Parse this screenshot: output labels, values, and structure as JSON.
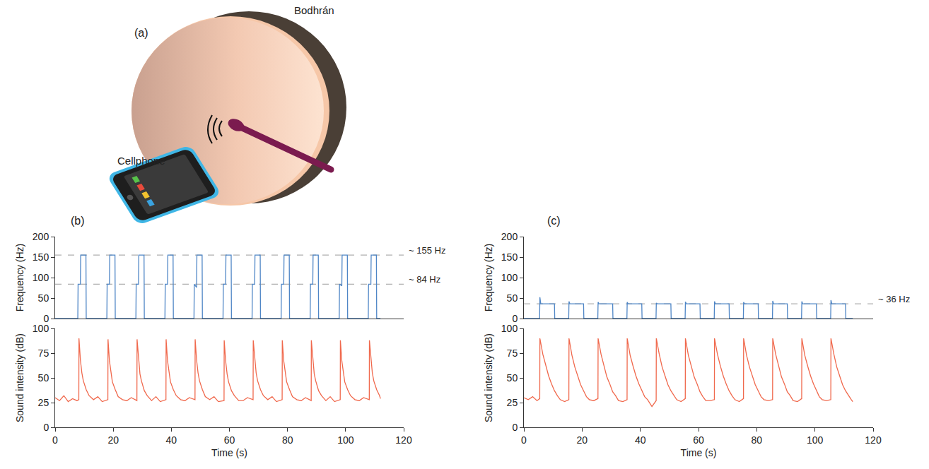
{
  "figure": {
    "panel": "(a)",
    "labels": {
      "drum": "Bodhrán",
      "phone": "Cellphone"
    }
  },
  "chart_data": [
    {
      "type": "line",
      "panel": "(b)",
      "y_label": "Frequency (Hz)",
      "color": "#4f86c6",
      "line_style": "solid",
      "xlim": [
        0,
        120
      ],
      "ylim": [
        0,
        200
      ],
      "yticks": [
        0,
        50,
        100,
        150,
        200
      ],
      "tick_labels": "y",
      "reference_lines": [
        {
          "value": 155,
          "label": "~ 155 Hz"
        },
        {
          "value": 84,
          "label": "~ 84 Hz"
        }
      ],
      "x": [
        0,
        7.8,
        7.9,
        8.7,
        8.8,
        10.6,
        10.7,
        17.8,
        17.9,
        18.7,
        18.8,
        20.6,
        20.7,
        27.8,
        27.9,
        28.7,
        28.8,
        30.6,
        30.7,
        37.8,
        37.9,
        38.7,
        38.8,
        40.6,
        40.7,
        47.8,
        47.9,
        48.7,
        48.8,
        50.6,
        50.7,
        57.8,
        57.9,
        58.7,
        58.8,
        60.6,
        60.7,
        67.8,
        67.9,
        68.7,
        68.8,
        70.6,
        70.7,
        77.8,
        77.9,
        78.7,
        78.8,
        80.6,
        80.7,
        87.8,
        87.9,
        88.7,
        88.8,
        90.6,
        90.7,
        97.8,
        97.9,
        98.7,
        98.8,
        100.6,
        100.7,
        107.8,
        107.9,
        108.7,
        108.8,
        110.6,
        110.7,
        112
      ],
      "values": [
        0,
        0,
        84,
        84,
        155,
        155,
        0,
        0,
        84,
        84,
        155,
        155,
        0,
        0,
        84,
        84,
        155,
        155,
        0,
        0,
        84,
        84,
        155,
        155,
        0,
        0,
        84,
        76,
        155,
        155,
        0,
        0,
        84,
        84,
        155,
        155,
        0,
        0,
        84,
        84,
        155,
        155,
        0,
        0,
        84,
        84,
        155,
        155,
        0,
        0,
        84,
        84,
        155,
        155,
        0,
        0,
        84,
        80,
        155,
        155,
        0,
        0,
        84,
        84,
        155,
        155,
        0,
        0
      ]
    },
    {
      "type": "line",
      "y_label": "Sound intensity (dB)",
      "x_label": "Time (s)",
      "color": "#f0694d",
      "line_style": "solid",
      "xlim": [
        0,
        120
      ],
      "xticks": [
        0,
        20,
        40,
        60,
        80,
        100,
        120
      ],
      "ylim": [
        0,
        100
      ],
      "yticks": [
        0,
        25,
        50,
        75,
        100
      ],
      "x": [
        0,
        1.5,
        3,
        4.5,
        6,
        7.5,
        8.15,
        8.2,
        8.7,
        9.2,
        9.7,
        10.7,
        11.7,
        13.2,
        14.7,
        16.2,
        18.15,
        18.2,
        18.7,
        19.2,
        19.7,
        20.7,
        21.7,
        23.2,
        24.7,
        26.2,
        28.15,
        28.2,
        28.7,
        29.2,
        29.7,
        30.7,
        31.7,
        33.2,
        34.7,
        36.2,
        38.15,
        38.2,
        38.7,
        39.2,
        39.7,
        40.7,
        41.7,
        43.2,
        44.7,
        46.2,
        48.15,
        48.2,
        48.7,
        49.2,
        49.7,
        50.7,
        51.7,
        53.2,
        54.7,
        56.2,
        58.15,
        58.2,
        58.7,
        59.2,
        59.7,
        60.7,
        61.7,
        63.2,
        64.7,
        66.2,
        68.15,
        68.2,
        68.7,
        69.2,
        69.7,
        70.7,
        71.7,
        73.2,
        74.7,
        76.2,
        78.15,
        78.2,
        78.7,
        79.2,
        79.7,
        80.7,
        81.7,
        83.2,
        84.7,
        86.2,
        88.15,
        88.2,
        88.7,
        89.2,
        89.7,
        90.7,
        91.7,
        93.2,
        94.7,
        96.2,
        98.15,
        98.2,
        98.7,
        99.2,
        99.7,
        100.7,
        101.7,
        103.2,
        104.7,
        106.2,
        108.15,
        108.2,
        108.7,
        109.2,
        109.7,
        110.7,
        111.7,
        112
      ],
      "values": [
        30,
        27,
        32,
        26,
        29,
        27,
        28,
        90,
        68,
        55,
        47,
        38,
        32,
        28,
        31,
        26,
        28,
        89,
        67,
        55,
        46,
        38,
        31,
        28,
        27,
        30,
        27,
        89,
        68,
        54,
        47,
        37,
        32,
        27,
        31,
        26,
        28,
        89,
        67,
        55,
        46,
        38,
        32,
        28,
        27,
        30,
        28,
        89,
        68,
        55,
        47,
        38,
        31,
        28,
        31,
        26,
        27,
        88,
        67,
        54,
        46,
        37,
        32,
        27,
        27,
        30,
        28,
        88,
        68,
        55,
        47,
        38,
        32,
        28,
        31,
        26,
        28,
        88,
        67,
        55,
        46,
        38,
        31,
        28,
        27,
        30,
        27,
        88,
        68,
        54,
        47,
        37,
        32,
        27,
        31,
        26,
        28,
        88,
        67,
        55,
        46,
        38,
        32,
        28,
        27,
        30,
        28,
        88,
        68,
        55,
        47,
        38,
        32,
        29
      ]
    },
    {
      "type": "line",
      "panel": "(c)",
      "y_label": "Frequency (Hz)",
      "color": "#4f86c6",
      "line_style": "solid",
      "xlim": [
        0,
        120
      ],
      "ylim": [
        0,
        200
      ],
      "yticks": [
        0,
        50,
        100,
        150,
        200
      ],
      "tick_labels": "y",
      "reference_lines": [
        {
          "value": 36,
          "label": "~ 36 Hz"
        }
      ],
      "x": [
        0,
        5.4,
        5.5,
        5.8,
        10.5,
        10.6,
        15.4,
        15.5,
        15.8,
        20.5,
        20.6,
        25.4,
        25.5,
        25.8,
        30.5,
        30.6,
        35.4,
        35.5,
        35.8,
        40.5,
        40.6,
        45.4,
        45.5,
        45.8,
        50.5,
        50.6,
        55.4,
        55.5,
        55.8,
        60.5,
        60.6,
        65.4,
        65.5,
        65.8,
        70.5,
        70.6,
        75.4,
        75.5,
        75.8,
        80.5,
        80.6,
        85.4,
        85.5,
        85.8,
        90.5,
        90.6,
        95.4,
        95.5,
        95.8,
        100.5,
        100.6,
        105.4,
        105.5,
        105.8,
        110.5,
        110.6,
        113
      ],
      "values": [
        0,
        0,
        52,
        36,
        36,
        0,
        0,
        42,
        36,
        36,
        0,
        0,
        40,
        36,
        36,
        0,
        0,
        40,
        36,
        36,
        0,
        0,
        38,
        36,
        36,
        0,
        0,
        41,
        36,
        36,
        0,
        0,
        42,
        36,
        36,
        0,
        0,
        40,
        36,
        36,
        0,
        0,
        43,
        36,
        36,
        0,
        0,
        42,
        36,
        36,
        0,
        0,
        45,
        36,
        36,
        0,
        0
      ]
    },
    {
      "type": "line",
      "y_label": "Sound intensity (dB)",
      "x_label": "Time (s)",
      "color": "#f0694d",
      "line_style": "solid",
      "xlim": [
        0,
        120
      ],
      "xticks": [
        0,
        20,
        40,
        60,
        80,
        100,
        120
      ],
      "ylim": [
        0,
        100
      ],
      "yticks": [
        0,
        25,
        50,
        75,
        100
      ],
      "x": [
        0,
        1.5,
        3,
        4.5,
        5.45,
        5.5,
        6.5,
        7.5,
        8.5,
        9.5,
        10.5,
        11.5,
        12.5,
        14,
        15.45,
        15.5,
        16.5,
        17.5,
        18.5,
        19.5,
        20.5,
        21.5,
        22.5,
        24,
        25.45,
        25.5,
        26.5,
        27.5,
        28.5,
        29.5,
        30.5,
        31.5,
        32.5,
        34,
        35.45,
        35.5,
        36.5,
        37.5,
        38.5,
        39.5,
        40.5,
        41.5,
        42.5,
        44,
        45.45,
        45.5,
        46.5,
        47.5,
        48.5,
        49.5,
        50.5,
        51.5,
        52.5,
        54,
        55.45,
        55.5,
        56.5,
        57.5,
        58.5,
        59.5,
        60.5,
        61.5,
        62.5,
        64,
        65.45,
        65.5,
        66.5,
        67.5,
        68.5,
        69.5,
        70.5,
        71.5,
        72.5,
        74,
        75.45,
        75.5,
        76.5,
        77.5,
        78.5,
        79.5,
        80.5,
        81.5,
        82.5,
        84,
        85.45,
        85.5,
        86.5,
        87.5,
        88.5,
        89.5,
        90.5,
        91.5,
        92.5,
        94,
        95.45,
        95.5,
        96.5,
        97.5,
        98.5,
        99.5,
        100.5,
        101.5,
        102.5,
        104,
        105.45,
        105.5,
        106.5,
        107.5,
        108.5,
        109.5,
        110.5,
        111.5,
        112.5,
        113
      ],
      "values": [
        30,
        28,
        31,
        27,
        29,
        90,
        74,
        62,
        52,
        44,
        37,
        32,
        28,
        26,
        28,
        90,
        73,
        61,
        52,
        43,
        37,
        31,
        28,
        27,
        29,
        90,
        74,
        62,
        51,
        44,
        36,
        32,
        27,
        26,
        28,
        90,
        73,
        62,
        52,
        44,
        37,
        31,
        28,
        21,
        27,
        90,
        74,
        61,
        52,
        43,
        37,
        32,
        28,
        26,
        29,
        90,
        73,
        62,
        51,
        44,
        36,
        31,
        27,
        27,
        28,
        90,
        74,
        62,
        52,
        44,
        37,
        32,
        28,
        26,
        29,
        90,
        73,
        61,
        52,
        43,
        37,
        31,
        28,
        27,
        28,
        90,
        74,
        62,
        51,
        44,
        36,
        32,
        27,
        26,
        29,
        90,
        73,
        62,
        52,
        44,
        37,
        31,
        28,
        27,
        28,
        90,
        74,
        61,
        52,
        43,
        37,
        32,
        28,
        26
      ]
    }
  ]
}
